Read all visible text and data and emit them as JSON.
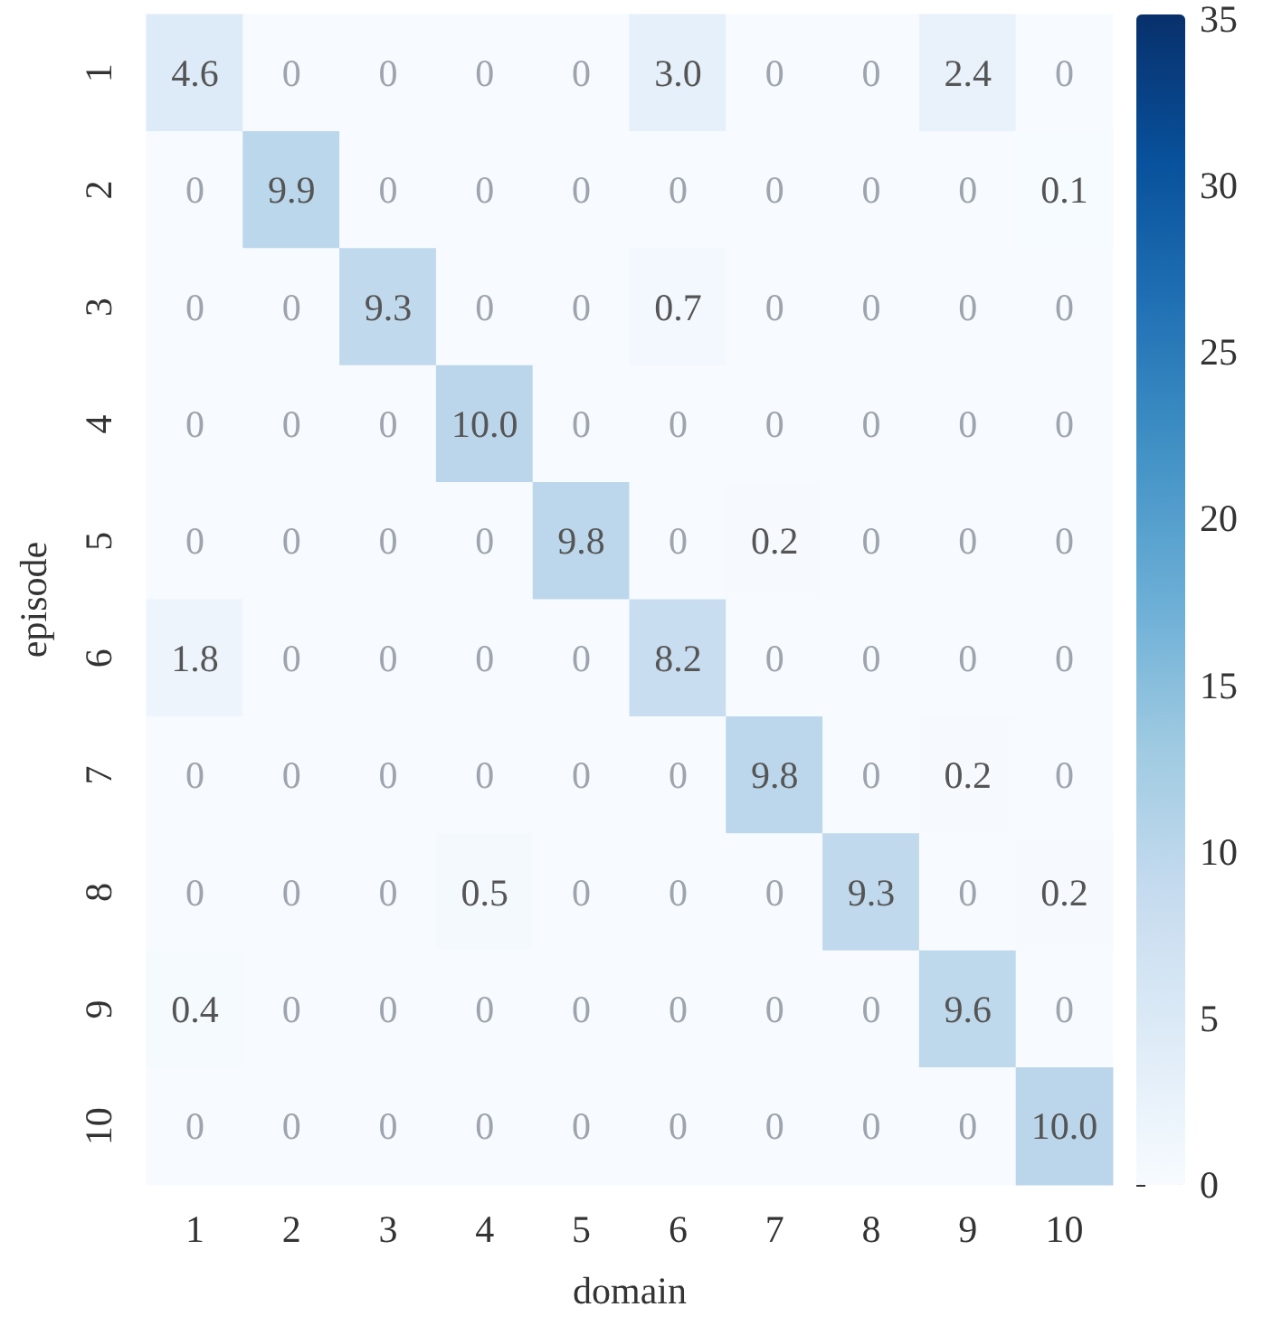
{
  "chart_data": {
    "type": "heatmap",
    "xlabel": "domain",
    "ylabel": "episode",
    "categories": [
      "1",
      "2",
      "3",
      "4",
      "5",
      "6",
      "7",
      "8",
      "9",
      "10"
    ],
    "y_categories": [
      "1",
      "2",
      "3",
      "4",
      "5",
      "6",
      "7",
      "8",
      "9",
      "10"
    ],
    "cells": [
      [
        4.6,
        0,
        0,
        0,
        0,
        3.0,
        0,
        0,
        2.4,
        0
      ],
      [
        0,
        9.9,
        0,
        0,
        0,
        0,
        0,
        0,
        0,
        0.1
      ],
      [
        0,
        0,
        9.3,
        0,
        0,
        0.7,
        0,
        0,
        0,
        0
      ],
      [
        0,
        0,
        0,
        10.0,
        0,
        0,
        0,
        0,
        0,
        0
      ],
      [
        0,
        0,
        0,
        0,
        9.8,
        0,
        0.2,
        0,
        0,
        0
      ],
      [
        1.8,
        0,
        0,
        0,
        0,
        8.2,
        0,
        0,
        0,
        0
      ],
      [
        0,
        0,
        0,
        0,
        0,
        0,
        9.8,
        0,
        0.2,
        0
      ],
      [
        0,
        0,
        0,
        0.5,
        0,
        0,
        0,
        9.3,
        0,
        0.2
      ],
      [
        0.4,
        0,
        0,
        0,
        0,
        0,
        0,
        0,
        9.6,
        0
      ],
      [
        0,
        0,
        0,
        0,
        0,
        0,
        0,
        0,
        0,
        10.0
      ]
    ],
    "cell_labels": [
      [
        "4.6",
        "0",
        "0",
        "0",
        "0",
        "3.0",
        "0",
        "0",
        "2.4",
        "0"
      ],
      [
        "0",
        "9.9",
        "0",
        "0",
        "0",
        "0",
        "0",
        "0",
        "0",
        "0.1"
      ],
      [
        "0",
        "0",
        "9.3",
        "0",
        "0",
        "0.7",
        "0",
        "0",
        "0",
        "0"
      ],
      [
        "0",
        "0",
        "0",
        "10.0",
        "0",
        "0",
        "0",
        "0",
        "0",
        "0"
      ],
      [
        "0",
        "0",
        "0",
        "0",
        "9.8",
        "0",
        "0.2",
        "0",
        "0",
        "0"
      ],
      [
        "1.8",
        "0",
        "0",
        "0",
        "0",
        "8.2",
        "0",
        "0",
        "0",
        "0"
      ],
      [
        "0",
        "0",
        "0",
        "0",
        "0",
        "0",
        "9.8",
        "0",
        "0.2",
        "0"
      ],
      [
        "0",
        "0",
        "0",
        "0.5",
        "0",
        "0",
        "0",
        "9.3",
        "0",
        "0.2"
      ],
      [
        "0.4",
        "0",
        "0",
        "0",
        "0",
        "0",
        "0",
        "0",
        "9.6",
        "0"
      ],
      [
        "0",
        "0",
        "0",
        "0",
        "0",
        "0",
        "0",
        "0",
        "0",
        "10.0"
      ]
    ],
    "clim": [
      0,
      35
    ],
    "cticks": [
      0,
      5,
      10,
      15,
      20,
      25,
      30,
      35
    ]
  }
}
